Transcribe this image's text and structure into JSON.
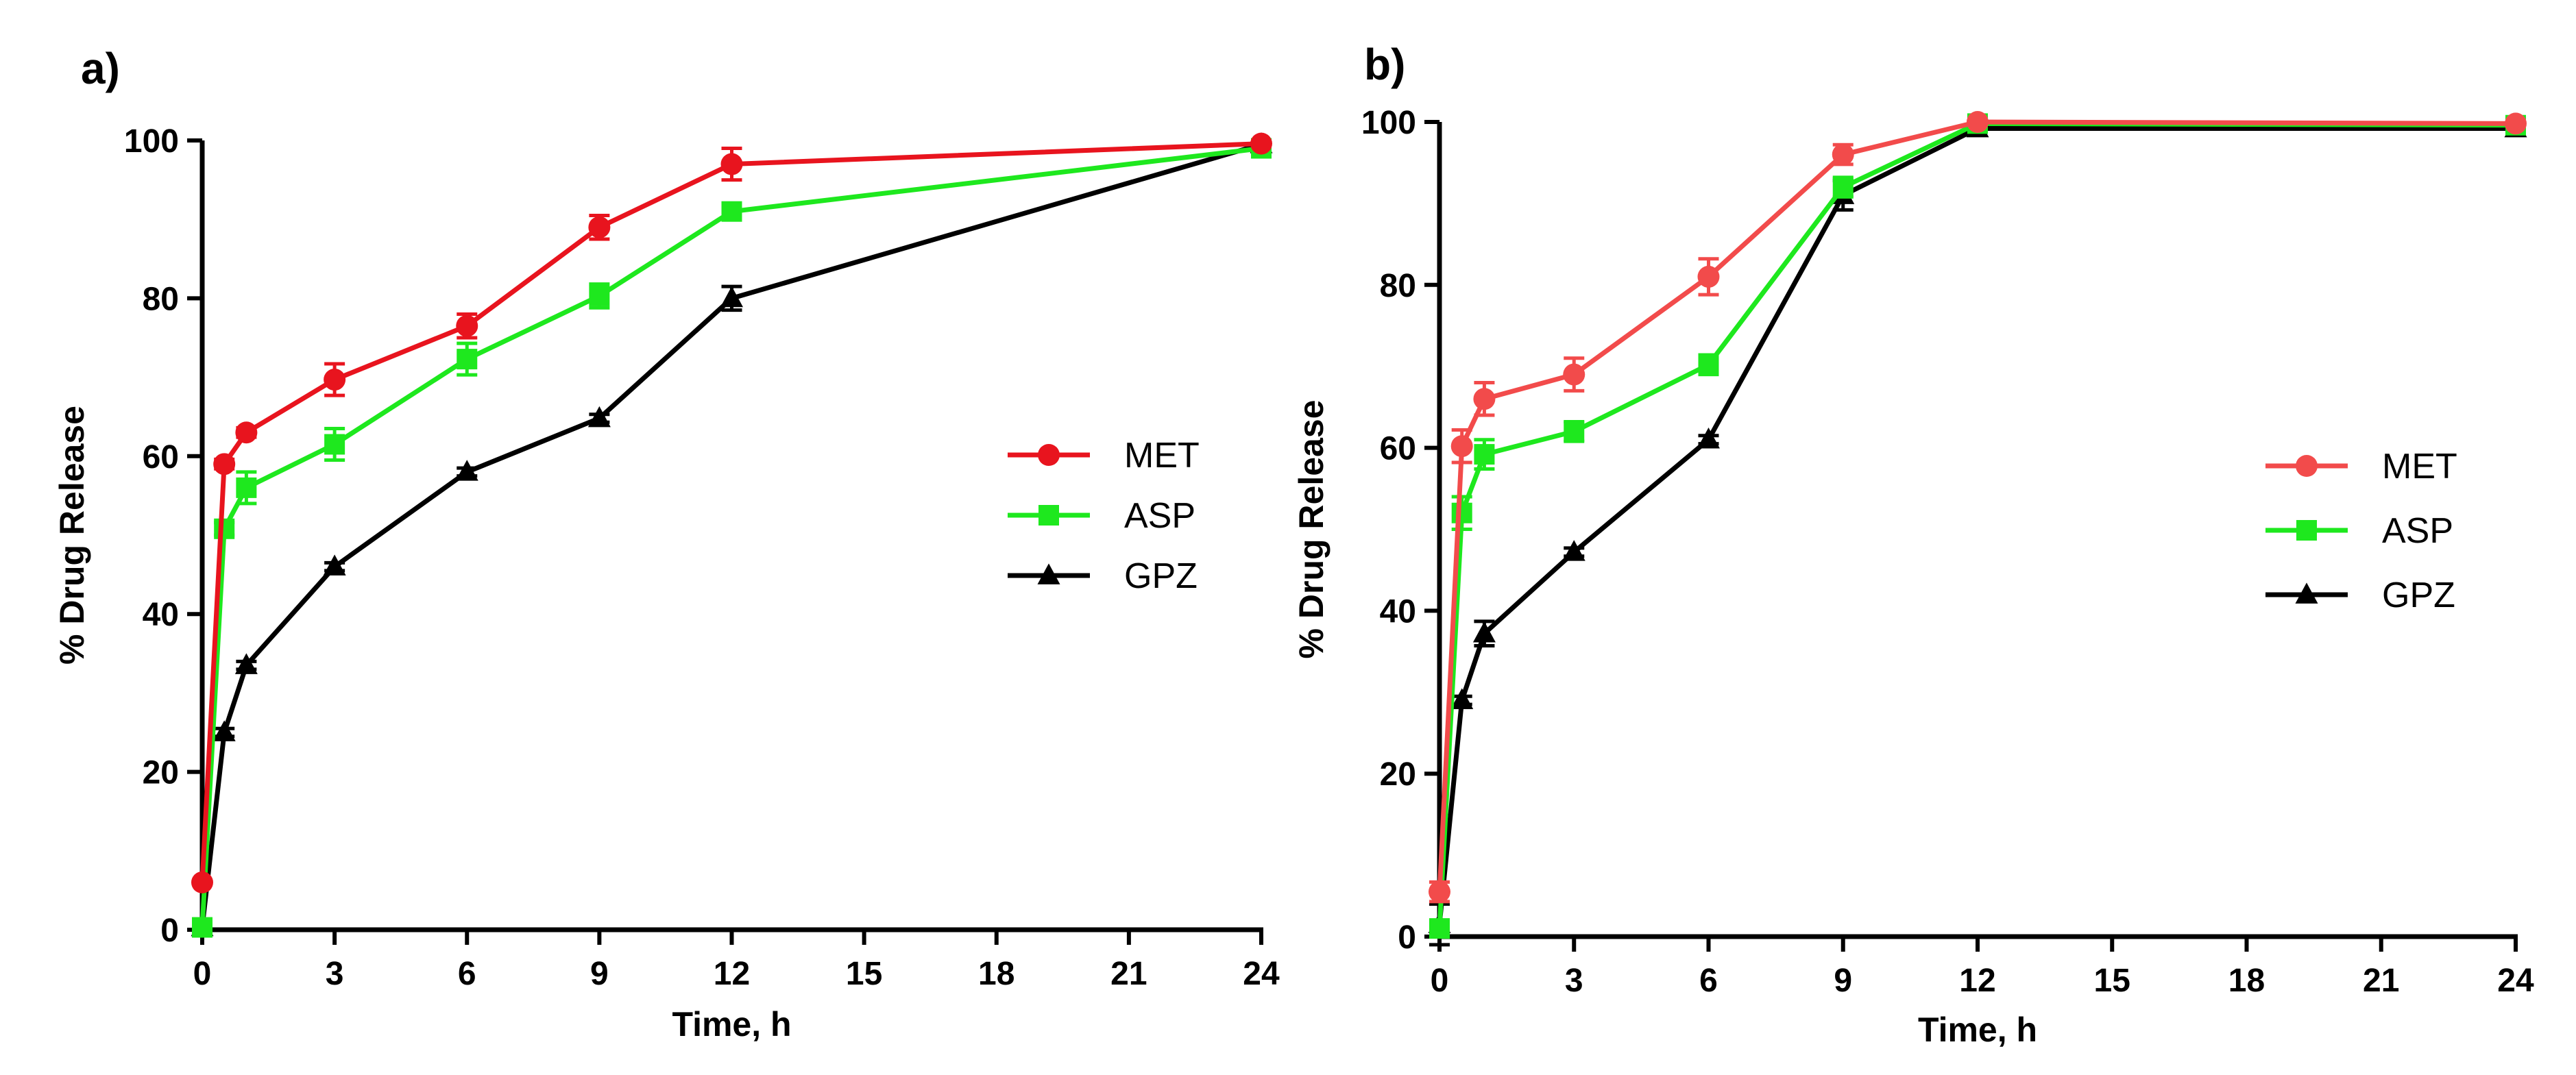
{
  "chart_data": [
    {
      "type": "line",
      "panel_label": "a)",
      "xlabel": "Time, h",
      "ylabel": "% Drug Release",
      "xlim": [
        0,
        24
      ],
      "ylim": [
        0,
        100
      ],
      "xticks": [
        "0",
        "3",
        "6",
        "9",
        "12",
        "15",
        "18",
        "21",
        "24"
      ],
      "yticks": [
        "0",
        "20",
        "40",
        "60",
        "80",
        "100"
      ],
      "x": [
        0,
        0.5,
        1,
        3,
        6,
        9,
        12,
        24
      ],
      "legend_position": "right",
      "series": [
        {
          "name": "MET",
          "color": "#e8141e",
          "marker": "circle",
          "values": [
            6,
            59,
            63,
            69.7,
            76.5,
            89,
            97,
            99.6
          ],
          "errors": [
            0,
            0.6,
            0.6,
            2,
            1.5,
            1.5,
            2,
            0.3
          ]
        },
        {
          "name": "ASP",
          "color": "#1ee81e",
          "marker": "square",
          "values": [
            0.3,
            50.8,
            56,
            61.5,
            72.3,
            80.3,
            91,
            99
          ],
          "errors": [
            0,
            0.8,
            2,
            2,
            2,
            1.5,
            0.7,
            0.3
          ]
        },
        {
          "name": "GPZ",
          "color": "#000000",
          "marker": "triangle",
          "values": [
            0.3,
            25,
            33.5,
            46,
            58,
            64.8,
            80,
            99.5
          ],
          "errors": [
            0,
            0.5,
            0.5,
            0.5,
            0.5,
            0.5,
            1.5,
            0.3
          ]
        }
      ]
    },
    {
      "type": "line",
      "panel_label": "b)",
      "xlabel": "Time, h",
      "ylabel": "% Drug Release",
      "xlim": [
        0,
        24
      ],
      "ylim": [
        0,
        100
      ],
      "xticks": [
        "0",
        "3",
        "6",
        "9",
        "12",
        "15",
        "18",
        "21",
        "24"
      ],
      "yticks": [
        "0",
        "20",
        "40",
        "60",
        "80",
        "100"
      ],
      "x": [
        0,
        0.5,
        1,
        3,
        6,
        9,
        12,
        24
      ],
      "legend_position": "right",
      "series": [
        {
          "name": "MET",
          "color": "#f24b4b",
          "marker": "circle",
          "values": [
            5.5,
            60.2,
            66,
            69,
            81,
            96,
            100,
            99.8
          ],
          "errors": [
            1.2,
            2,
            2,
            2,
            2.2,
            1.2,
            0.3,
            0.3
          ]
        },
        {
          "name": "ASP",
          "color": "#1ee81e",
          "marker": "square",
          "values": [
            1,
            52,
            59.2,
            62,
            70.2,
            92,
            99.8,
            99.6
          ],
          "errors": [
            0.5,
            2,
            1.8,
            1.2,
            1.2,
            1.2,
            0.3,
            0.3
          ]
        },
        {
          "name": "GPZ",
          "color": "#000000",
          "marker": "triangle",
          "values": [
            1.5,
            29,
            37.2,
            47.2,
            61,
            91,
            99.2,
            99.2
          ],
          "errors": [
            2.5,
            0.5,
            1.5,
            0.5,
            0.5,
            1.8,
            0.3,
            0.3
          ]
        }
      ]
    }
  ]
}
